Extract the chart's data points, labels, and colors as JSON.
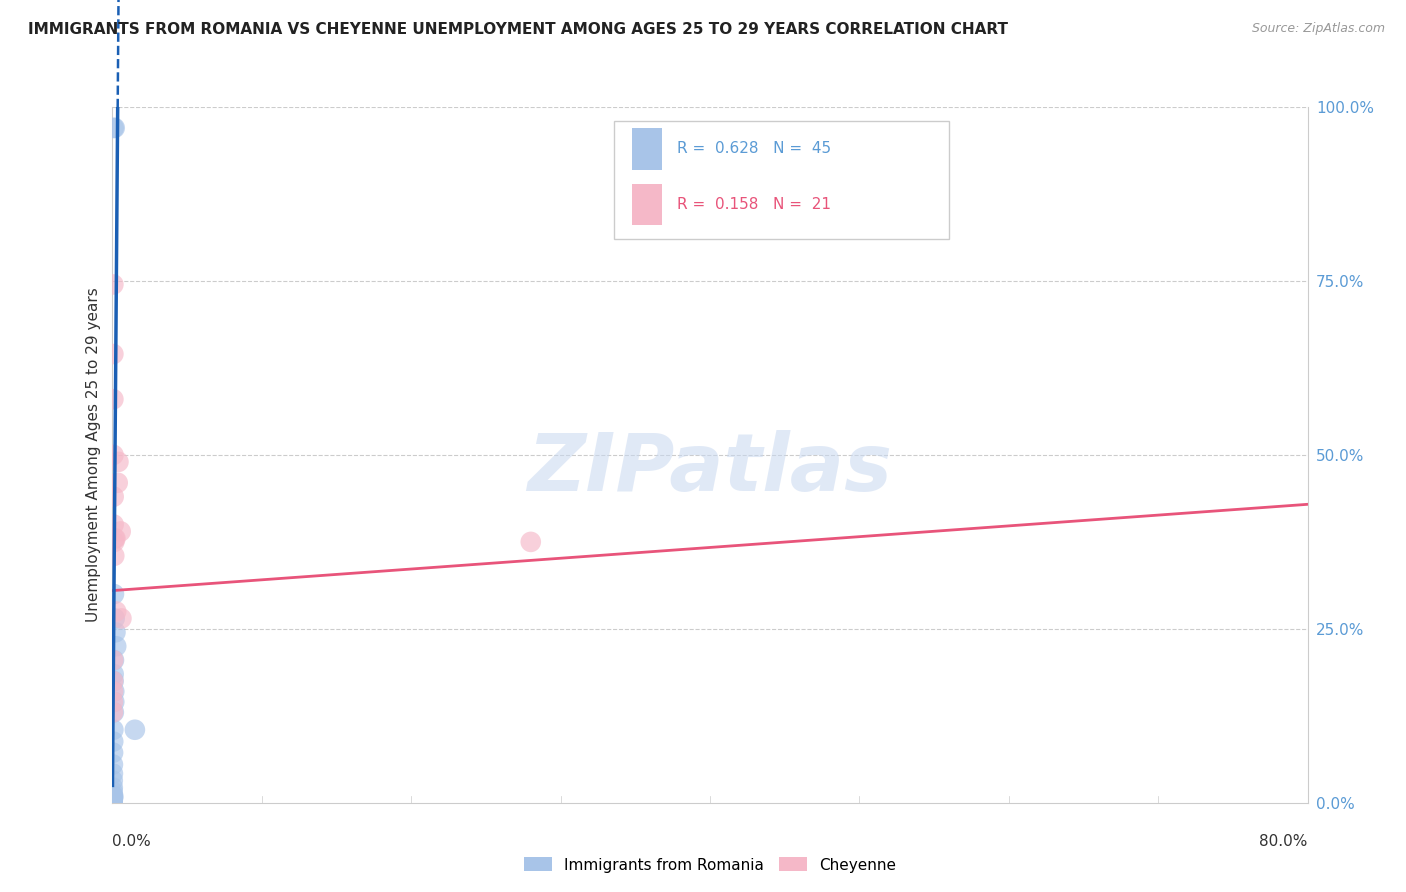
{
  "title": "IMMIGRANTS FROM ROMANIA VS CHEYENNE UNEMPLOYMENT AMONG AGES 25 TO 29 YEARS CORRELATION CHART",
  "source": "Source: ZipAtlas.com",
  "ylabel": "Unemployment Among Ages 25 to 29 years",
  "legend1_r": "0.628",
  "legend1_n": "45",
  "legend2_r": "0.158",
  "legend2_n": "21",
  "blue_color": "#a8c4e8",
  "pink_color": "#f5b8c8",
  "blue_line_color": "#1a5fb4",
  "pink_line_color": "#e8547a",
  "blue_scatter": [
    [
      0.0008,
      0.97
    ],
    [
      0.0015,
      0.97
    ],
    [
      0.001,
      0.3
    ],
    [
      0.0015,
      0.265
    ],
    [
      0.002,
      0.245
    ],
    [
      0.0025,
      0.225
    ],
    [
      0.001,
      0.205
    ],
    [
      0.0008,
      0.185
    ],
    [
      0.0008,
      0.175
    ],
    [
      0.0012,
      0.16
    ],
    [
      0.0012,
      0.145
    ],
    [
      0.0009,
      0.13
    ],
    [
      0.0006,
      0.105
    ],
    [
      0.0005,
      0.088
    ],
    [
      0.0004,
      0.072
    ],
    [
      0.0003,
      0.055
    ],
    [
      0.0003,
      0.042
    ],
    [
      0.0002,
      0.032
    ],
    [
      0.0002,
      0.022
    ],
    [
      0.00015,
      0.016
    ],
    [
      0.00012,
      0.01
    ],
    [
      0.0001,
      0.007
    ],
    [
      8e-05,
      0.005
    ],
    [
      6e-05,
      0.003
    ],
    [
      0.015,
      0.105
    ],
    [
      0.0,
      0.0
    ],
    [
      0.0,
      0.0
    ],
    [
      0.0,
      0.0
    ],
    [
      0.0,
      0.0
    ],
    [
      0.0,
      0.0
    ],
    [
      0.0,
      0.0
    ],
    [
      0.0,
      0.0
    ],
    [
      0.0,
      0.0
    ],
    [
      5e-05,
      0.001
    ],
    [
      5e-05,
      0.0005
    ],
    [
      3e-05,
      0.0003
    ],
    [
      4e-05,
      0.0015
    ],
    [
      2e-05,
      0.0008
    ],
    [
      0.0001,
      0.002
    ],
    [
      0.0001,
      0.0015
    ],
    [
      0.00015,
      0.003
    ],
    [
      0.0002,
      0.004
    ],
    [
      0.0003,
      0.006
    ],
    [
      0.0004,
      0.008
    ],
    [
      0.0005,
      0.01
    ]
  ],
  "pink_scatter": [
    [
      0.0006,
      0.745
    ],
    [
      0.0006,
      0.645
    ],
    [
      0.0006,
      0.58
    ],
    [
      0.0007,
      0.5
    ],
    [
      0.0008,
      0.44
    ],
    [
      0.0008,
      0.4
    ],
    [
      0.0012,
      0.375
    ],
    [
      0.0012,
      0.355
    ],
    [
      0.0014,
      0.38
    ],
    [
      0.002,
      0.38
    ],
    [
      0.0055,
      0.39
    ],
    [
      0.0025,
      0.275
    ],
    [
      0.004,
      0.49
    ],
    [
      0.0035,
      0.46
    ],
    [
      0.006,
      0.265
    ],
    [
      0.0005,
      0.205
    ],
    [
      0.0004,
      0.175
    ],
    [
      0.0004,
      0.16
    ],
    [
      0.0003,
      0.145
    ],
    [
      0.0003,
      0.13
    ],
    [
      0.28,
      0.375
    ]
  ],
  "xlim": [
    0.0,
    0.8
  ],
  "ylim": [
    0.0,
    1.0
  ],
  "blue_line_x0": 0.0,
  "blue_line_y0": 0.0,
  "blue_line_slope": 290.0,
  "blue_line_intercept": 0.03,
  "pink_line_x0": 0.0,
  "pink_line_y0": 0.305,
  "pink_line_slope": 0.155,
  "watermark": "ZIPatlas",
  "title_fontsize": 11,
  "source_fontsize": 9
}
